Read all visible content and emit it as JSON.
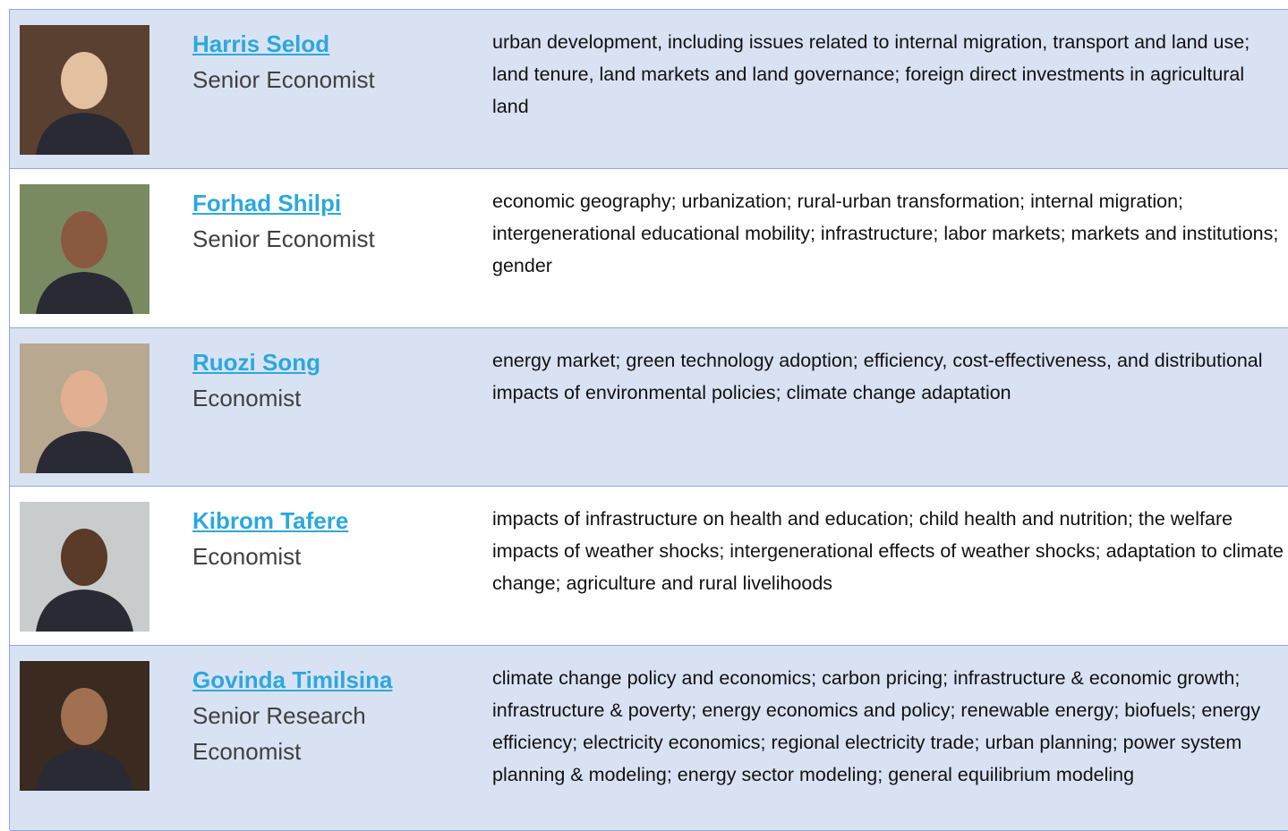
{
  "rows": [
    {
      "name": "Harris Selod",
      "title": "Senior Economist",
      "description": "urban development, including issues related to internal migration, transport and land use; land tenure, land markets and land governance; foreign direct investments in agricultural land"
    },
    {
      "name": "Forhad Shilpi",
      "title": "Senior Economist",
      "description": "economic geography; urbanization; rural-urban transformation; internal migration; intergenerational educational mobility; infrastructure; labor markets; markets and institutions; gender"
    },
    {
      "name": "Ruozi Song",
      "title": "Economist",
      "description": "energy market; green technology adoption; efficiency, cost-effectiveness, and distributional impacts of environmental policies; climate change adaptation"
    },
    {
      "name": "Kibrom Tafere",
      "title": "Economist",
      "description": "impacts of infrastructure on health and education; child health and nutrition; the welfare impacts of weather shocks; intergenerational effects of weather shocks; adaptation to climate change; agriculture and rural livelihoods"
    },
    {
      "name": "Govinda Timilsina",
      "title": "Senior Research Economist",
      "description": "climate change policy and economics; carbon pricing; infrastructure & economic growth; infrastructure & poverty; energy economics and policy; renewable energy; biofuels; energy efficiency; electricity economics; regional electricity trade; urban planning; power system planning & modeling; energy sector modeling; general equilibrium modeling"
    }
  ]
}
